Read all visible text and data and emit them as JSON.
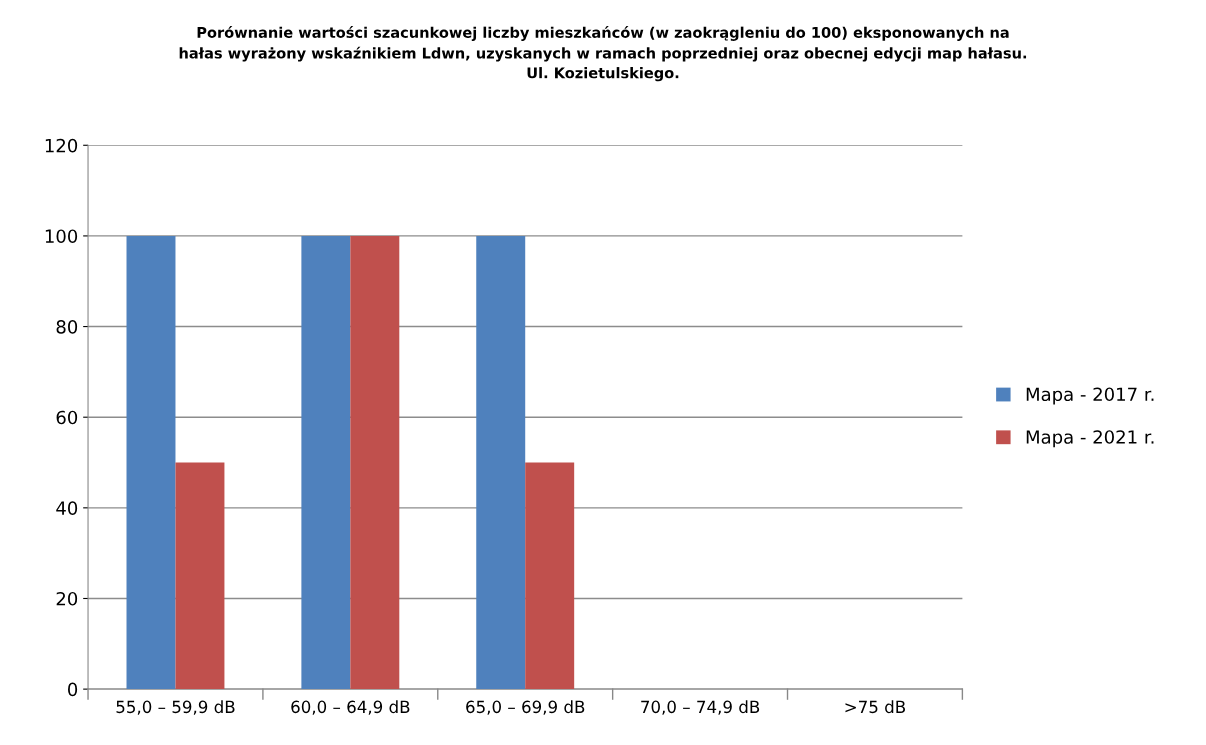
{
  "chart_data": {
    "type": "bar",
    "title": "Porównanie wartości szacunkowej liczby mieszkańców (w zaokrągleniu do 100) eksponowanych na\nhałas wyrażony wskaźnikiem Ldwn, uzyskanych w ramach poprzedniej oraz obecnej edycji map hałasu.\nUl. Kozietulskiego.",
    "categories": [
      "55,0 – 59,9 dB",
      "60,0 – 64,9 dB",
      "65,0 – 69,9 dB",
      "70,0 – 74,9 dB",
      ">75 dB"
    ],
    "series": [
      {
        "name": "Mapa - 2017 r.",
        "color": "#4f81bd",
        "values": [
          100,
          100,
          100,
          0,
          0
        ]
      },
      {
        "name": "Mapa - 2021 r.",
        "color": "#c0504d",
        "values": [
          50,
          100,
          50,
          0,
          0
        ]
      }
    ],
    "ylim": [
      0,
      120
    ],
    "yticks": [
      0,
      20,
      40,
      60,
      80,
      100,
      120
    ],
    "grid": "y",
    "legend": "right"
  }
}
